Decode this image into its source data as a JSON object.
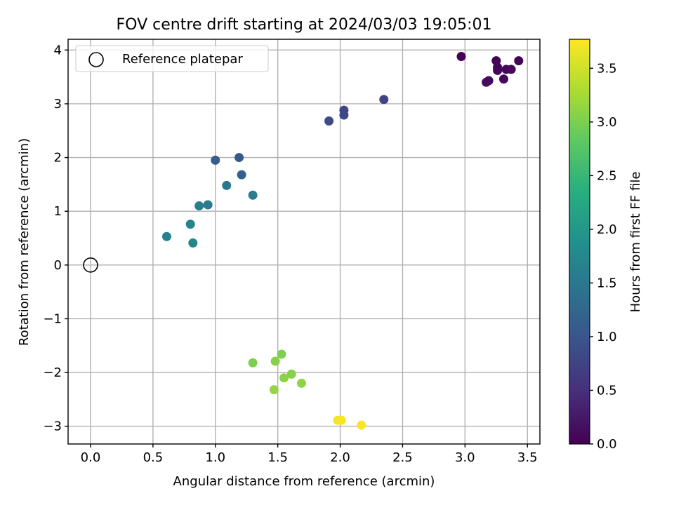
{
  "chart_data": {
    "type": "scatter",
    "title": "FOV centre drift starting at 2024/03/03 19:05:01",
    "xlabel": "Angular distance from reference (arcmin)",
    "ylabel": "Rotation from reference (arcmin)",
    "xlim": [
      -0.18,
      3.6
    ],
    "ylim": [
      -3.33,
      4.2
    ],
    "xticks": [
      0.0,
      0.5,
      1.0,
      1.5,
      2.0,
      2.5,
      3.0,
      3.5
    ],
    "xtick_labels": [
      "0.0",
      "0.5",
      "1.0",
      "1.5",
      "2.0",
      "2.5",
      "3.0",
      "3.5"
    ],
    "yticks": [
      -3,
      -2,
      -1,
      0,
      1,
      2,
      3,
      4
    ],
    "ytick_labels": [
      "−3",
      "−2",
      "−1",
      "0",
      "1",
      "2",
      "3",
      "4"
    ],
    "grid": true,
    "colormap": "viridis",
    "colorbar": {
      "label": "Hours from first FF file",
      "range": [
        0.0,
        3.77
      ],
      "ticks": [
        0.0,
        0.5,
        1.0,
        1.5,
        2.0,
        2.5,
        3.0,
        3.5
      ],
      "tick_labels": [
        "0.0",
        "0.5",
        "1.0",
        "1.5",
        "2.0",
        "2.5",
        "3.0",
        "3.5"
      ]
    },
    "legend": {
      "position": "upper-left",
      "entries": [
        {
          "label": "Reference platepar",
          "marker": "open-circle",
          "color": "#000000"
        }
      ]
    },
    "reference_point": {
      "x": 0.0,
      "y": 0.0
    },
    "points": [
      {
        "x": 2.97,
        "y": 3.88,
        "c": 0.02
      },
      {
        "x": 3.25,
        "y": 3.8,
        "c": 0.03
      },
      {
        "x": 3.43,
        "y": 3.8,
        "c": 0.04
      },
      {
        "x": 3.26,
        "y": 3.68,
        "c": 0.05
      },
      {
        "x": 3.26,
        "y": 3.62,
        "c": 0.06
      },
      {
        "x": 3.33,
        "y": 3.64,
        "c": 0.07
      },
      {
        "x": 3.37,
        "y": 3.64,
        "c": 0.08
      },
      {
        "x": 3.31,
        "y": 3.46,
        "c": 0.09
      },
      {
        "x": 3.19,
        "y": 3.43,
        "c": 0.1
      },
      {
        "x": 3.17,
        "y": 3.4,
        "c": 0.11
      },
      {
        "x": 2.35,
        "y": 3.08,
        "c": 0.75
      },
      {
        "x": 2.03,
        "y": 2.88,
        "c": 0.8
      },
      {
        "x": 2.03,
        "y": 2.79,
        "c": 0.82
      },
      {
        "x": 1.91,
        "y": 2.68,
        "c": 0.85
      },
      {
        "x": 1.19,
        "y": 2.0,
        "c": 1.05
      },
      {
        "x": 1.0,
        "y": 1.95,
        "c": 1.1
      },
      {
        "x": 1.21,
        "y": 1.68,
        "c": 1.15
      },
      {
        "x": 1.09,
        "y": 1.48,
        "c": 1.5
      },
      {
        "x": 1.3,
        "y": 1.3,
        "c": 1.55
      },
      {
        "x": 0.94,
        "y": 1.12,
        "c": 1.55
      },
      {
        "x": 0.87,
        "y": 1.1,
        "c": 1.6
      },
      {
        "x": 0.8,
        "y": 0.76,
        "c": 1.65
      },
      {
        "x": 0.61,
        "y": 0.53,
        "c": 1.65
      },
      {
        "x": 0.82,
        "y": 0.41,
        "c": 1.7
      },
      {
        "x": 1.53,
        "y": -1.66,
        "c": 3.0
      },
      {
        "x": 1.3,
        "y": -1.82,
        "c": 3.0
      },
      {
        "x": 1.48,
        "y": -1.79,
        "c": 3.05
      },
      {
        "x": 1.61,
        "y": -2.03,
        "c": 3.05
      },
      {
        "x": 1.55,
        "y": -2.1,
        "c": 3.1
      },
      {
        "x": 1.69,
        "y": -2.2,
        "c": 3.1
      },
      {
        "x": 1.47,
        "y": -2.32,
        "c": 3.15
      },
      {
        "x": 1.98,
        "y": -2.89,
        "c": 3.7
      },
      {
        "x": 2.01,
        "y": -2.89,
        "c": 3.72
      },
      {
        "x": 2.17,
        "y": -2.98,
        "c": 3.74
      }
    ]
  }
}
